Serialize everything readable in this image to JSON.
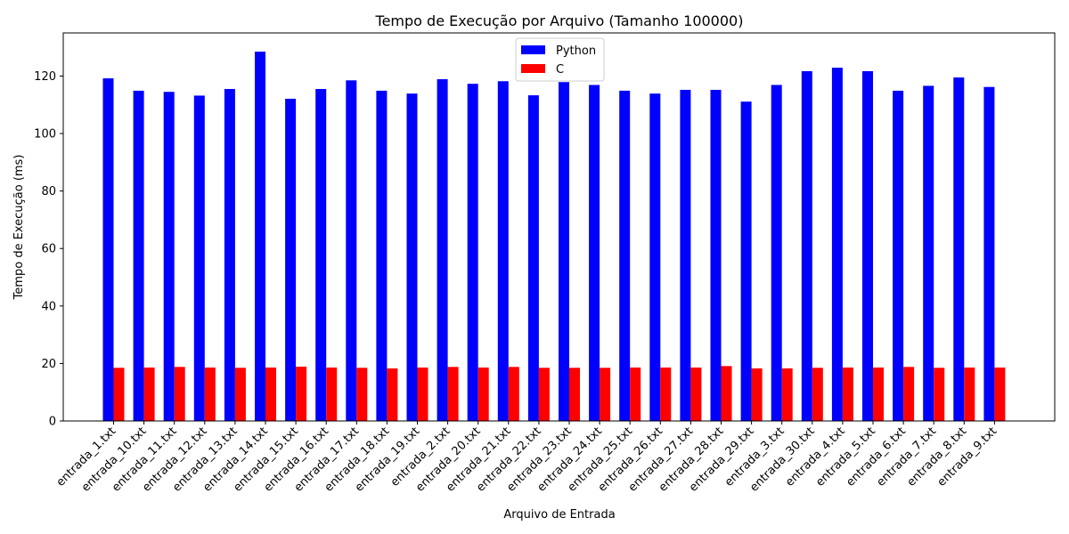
{
  "chart_data": {
    "type": "bar",
    "title": "Tempo de Execução por Arquivo (Tamanho 100000)",
    "xlabel": "Arquivo de Entrada",
    "ylabel": "Tempo de Execução (ms)",
    "ylim": [
      0,
      135
    ],
    "yticks": [
      0,
      20,
      40,
      60,
      80,
      100,
      120
    ],
    "legend_position": "top-center",
    "categories": [
      "entrada_1.txt",
      "entrada_10.txt",
      "entrada_11.txt",
      "entrada_12.txt",
      "entrada_13.txt",
      "entrada_14.txt",
      "entrada_15.txt",
      "entrada_16.txt",
      "entrada_17.txt",
      "entrada_18.txt",
      "entrada_19.txt",
      "entrada_2.txt",
      "entrada_20.txt",
      "entrada_21.txt",
      "entrada_22.txt",
      "entrada_23.txt",
      "entrada_24.txt",
      "entrada_25.txt",
      "entrada_26.txt",
      "entrada_27.txt",
      "entrada_28.txt",
      "entrada_29.txt",
      "entrada_3.txt",
      "entrada_30.txt",
      "entrada_4.txt",
      "entrada_5.txt",
      "entrada_6.txt",
      "entrada_7.txt",
      "entrada_8.txt",
      "entrada_9.txt"
    ],
    "series": [
      {
        "name": "Python",
        "color": "#0000ff",
        "values": [
          119.2,
          114.9,
          114.5,
          113.2,
          115.5,
          128.5,
          112.1,
          115.5,
          118.5,
          114.9,
          113.9,
          118.9,
          117.3,
          118.2,
          113.3,
          117.9,
          116.9,
          114.9,
          113.9,
          115.2,
          115.2,
          111.1,
          116.9,
          121.7,
          122.9,
          121.7,
          114.9,
          116.6,
          119.5,
          116.2
        ]
      },
      {
        "name": "C",
        "color": "#ff0000",
        "values": [
          18.5,
          18.6,
          18.8,
          18.6,
          18.5,
          18.6,
          18.9,
          18.6,
          18.5,
          18.3,
          18.6,
          18.8,
          18.6,
          18.8,
          18.5,
          18.5,
          18.5,
          18.6,
          18.6,
          18.6,
          19.1,
          18.3,
          18.3,
          18.5,
          18.6,
          18.6,
          18.8,
          18.5,
          18.6,
          18.6
        ]
      }
    ]
  }
}
